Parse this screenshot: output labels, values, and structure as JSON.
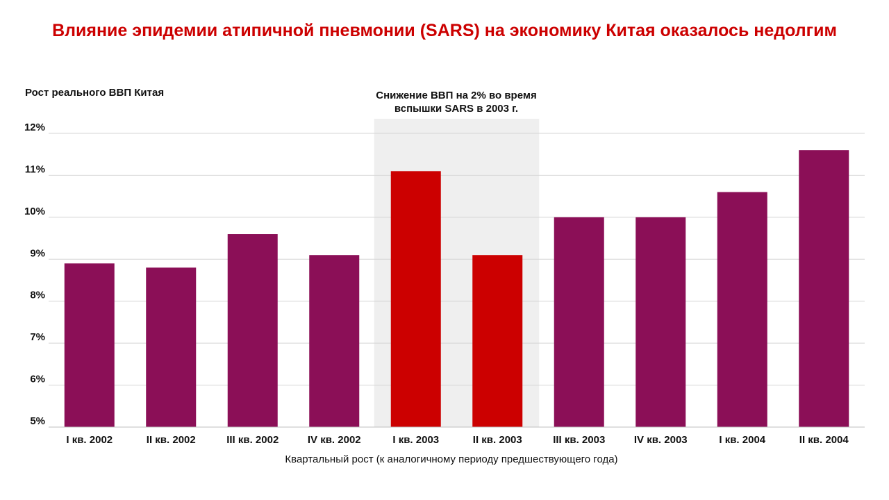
{
  "title": "Влияние эпидемии атипичной пневмонии (SARS) на экономику Китая оказалось недолгим",
  "chart_data": {
    "type": "bar",
    "title": "Влияние эпидемии атипичной пневмонии (SARS) на экономику Китая оказалось недолгим",
    "ylabel": "Рост реального ВВП Китая",
    "xlabel": "Квартальный рост (к аналогичному  периоду  предшествующего  года)",
    "ylim": [
      5,
      12
    ],
    "yticks": [
      "5%",
      "6%",
      "7%",
      "8%",
      "9%",
      "10%",
      "11%",
      "12%"
    ],
    "categories": [
      "I кв. 2002",
      "II кв. 2002",
      "III кв. 2002",
      "IV кв. 2002",
      "I кв. 2003",
      "II кв. 2003",
      "III кв. 2003",
      "IV кв. 2003",
      "I кв. 2004",
      "II кв. 2004"
    ],
    "values": [
      8.9,
      8.8,
      9.6,
      9.1,
      11.1,
      9.1,
      10.0,
      10.0,
      10.6,
      11.6
    ],
    "highlight": [
      false,
      false,
      false,
      false,
      true,
      true,
      false,
      false,
      false,
      false
    ],
    "annotation": {
      "line1": "Снижение ВВП на 2% во время",
      "line2": "вспышки SARS в 2003 г."
    },
    "grid": true,
    "colors": {
      "bar": "#8b0f57",
      "highlight_bar": "#cc0000",
      "highlight_band": "#efefef",
      "grid": "#d4d4d4",
      "title": "#cc0000"
    }
  }
}
